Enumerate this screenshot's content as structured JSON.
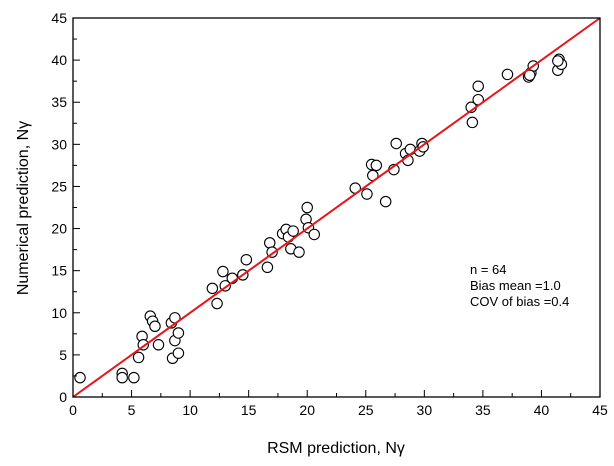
{
  "chart_data": {
    "type": "scatter",
    "xlabel": "RSM prediction, Nγ",
    "ylabel": "Numerical prediction, Nγ",
    "xlim": [
      0,
      45
    ],
    "ylim": [
      0,
      45
    ],
    "xticks": [
      0,
      5,
      10,
      15,
      20,
      25,
      30,
      35,
      40,
      45
    ],
    "yticks": [
      0,
      5,
      10,
      15,
      20,
      25,
      30,
      35,
      40,
      45
    ],
    "grid": false,
    "marker": "open-circle",
    "colors": {
      "points": "#000000",
      "line": "#e8141b",
      "axes": "#000000"
    },
    "series": [
      {
        "points": [
          [
            0.6,
            2.3
          ],
          [
            4.2,
            2.8
          ],
          [
            4.2,
            2.3
          ],
          [
            5.2,
            2.3
          ],
          [
            5.6,
            4.7
          ],
          [
            5.9,
            7.2
          ],
          [
            6.0,
            6.2
          ],
          [
            6.6,
            9.6
          ],
          [
            6.8,
            9.0
          ],
          [
            7.0,
            8.4
          ],
          [
            7.3,
            6.2
          ],
          [
            8.4,
            8.8
          ],
          [
            8.5,
            4.6
          ],
          [
            8.7,
            9.4
          ],
          [
            8.7,
            6.7
          ],
          [
            9.0,
            7.6
          ],
          [
            9.0,
            5.2
          ],
          [
            11.9,
            12.9
          ],
          [
            12.3,
            11.1
          ],
          [
            12.8,
            14.9
          ],
          [
            13.0,
            13.2
          ],
          [
            13.6,
            14.1
          ],
          [
            14.5,
            14.5
          ],
          [
            14.8,
            16.3
          ],
          [
            16.6,
            15.4
          ],
          [
            16.8,
            18.3
          ],
          [
            17.0,
            17.2
          ],
          [
            17.9,
            19.4
          ],
          [
            18.2,
            19.9
          ],
          [
            18.4,
            19.0
          ],
          [
            18.6,
            17.6
          ],
          [
            18.8,
            19.7
          ],
          [
            19.3,
            17.2
          ],
          [
            19.9,
            21.1
          ],
          [
            20.0,
            22.5
          ],
          [
            20.1,
            20.1
          ],
          [
            20.6,
            19.3
          ],
          [
            24.1,
            24.8
          ],
          [
            25.1,
            24.1
          ],
          [
            25.5,
            27.6
          ],
          [
            25.6,
            26.3
          ],
          [
            25.9,
            27.5
          ],
          [
            26.7,
            23.2
          ],
          [
            27.4,
            27.0
          ],
          [
            27.6,
            30.1
          ],
          [
            28.4,
            28.9
          ],
          [
            28.6,
            28.1
          ],
          [
            28.8,
            29.4
          ],
          [
            29.6,
            29.2
          ],
          [
            29.8,
            30.1
          ],
          [
            29.9,
            29.7
          ],
          [
            34.0,
            34.4
          ],
          [
            34.1,
            32.6
          ],
          [
            34.6,
            36.9
          ],
          [
            34.6,
            35.3
          ],
          [
            37.1,
            38.3
          ],
          [
            38.9,
            38.0
          ],
          [
            39.1,
            38.5
          ],
          [
            39.3,
            39.3
          ],
          [
            41.4,
            38.8
          ],
          [
            41.5,
            40.1
          ],
          [
            41.7,
            39.5
          ],
          [
            41.4,
            39.9
          ],
          [
            39.0,
            38.2
          ]
        ]
      },
      {
        "type": "line",
        "x": [
          0,
          45
        ],
        "y": [
          0,
          45
        ]
      }
    ],
    "annotations": [
      "n = 64",
      "Bias mean =1.0",
      "COV of bias =0.4"
    ]
  }
}
